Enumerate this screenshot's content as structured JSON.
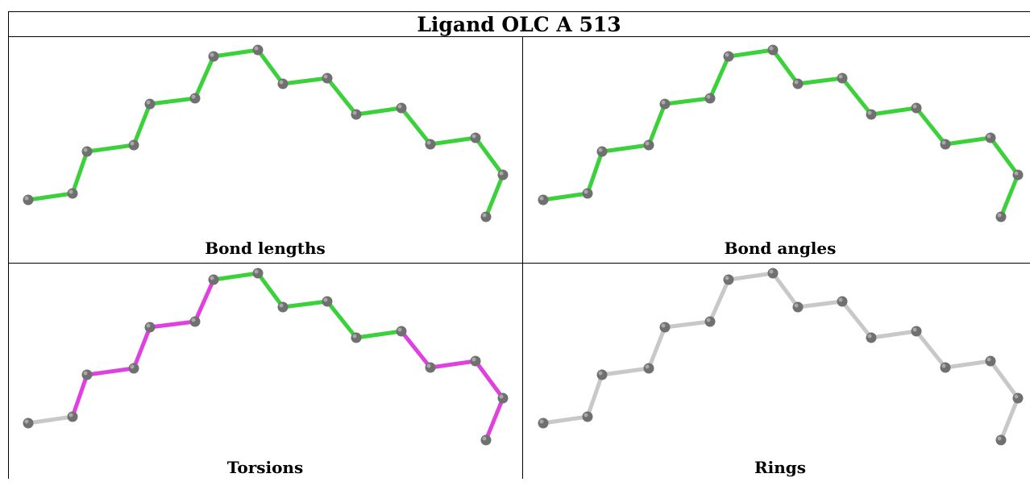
{
  "title": "Ligand OLC A 513",
  "panels": [
    {
      "caption": "Bond lengths",
      "bond_colors": [
        "#3ad13a",
        "#3ad13a",
        "#3ad13a",
        "#3ad13a",
        "#3ad13a",
        "#3ad13a",
        "#3ad13a",
        "#3ad13a",
        "#3ad13a",
        "#3ad13a",
        "#3ad13a",
        "#3ad13a",
        "#3ad13a",
        "#3ad13a",
        "#3ad13a",
        "#3ad13a",
        "#3ad13a"
      ]
    },
    {
      "caption": "Bond angles",
      "bond_colors": [
        "#3ad13a",
        "#3ad13a",
        "#3ad13a",
        "#3ad13a",
        "#3ad13a",
        "#3ad13a",
        "#3ad13a",
        "#3ad13a",
        "#3ad13a",
        "#3ad13a",
        "#3ad13a",
        "#3ad13a",
        "#3ad13a",
        "#3ad13a",
        "#3ad13a",
        "#3ad13a",
        "#3ad13a"
      ]
    },
    {
      "caption": "Torsions",
      "bond_colors": [
        "#c8c8c8",
        "#e040e0",
        "#e040e0",
        "#e040e0",
        "#e040e0",
        "#e040e0",
        "#3ad13a",
        "#3ad13a",
        "#3ad13a",
        "#3ad13a",
        "#3ad13a",
        "#e040e0",
        "#e040e0",
        "#e040e0",
        "#e040e0",
        "#e040e0",
        "#c8c8c8"
      ]
    },
    {
      "caption": "Rings",
      "bond_colors": [
        "#c8c8c8",
        "#c8c8c8",
        "#c8c8c8",
        "#c8c8c8",
        "#c8c8c8",
        "#c8c8c8",
        "#c8c8c8",
        "#c8c8c8",
        "#c8c8c8",
        "#c8c8c8",
        "#c8c8c8",
        "#c8c8c8",
        "#c8c8c8",
        "#c8c8c8",
        "#c8c8c8",
        "#c8c8c8",
        "#c8c8c8"
      ]
    }
  ],
  "colors": {
    "atom": "#707070",
    "atom_highlight": "#a8a8a8"
  }
}
